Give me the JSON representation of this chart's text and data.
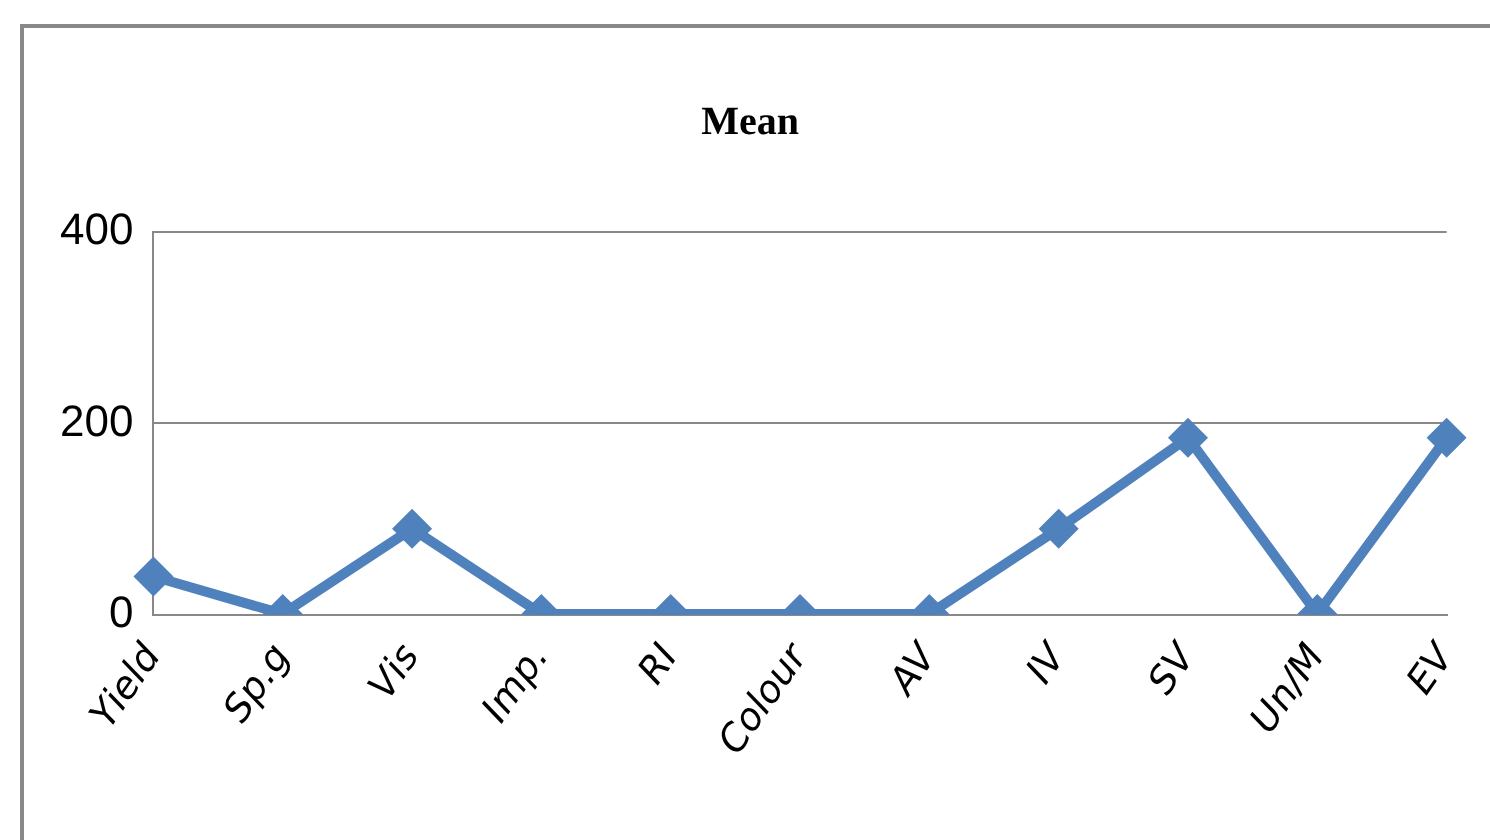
{
  "chart_data": {
    "type": "line",
    "title": "Mean",
    "categories": [
      "Yield",
      "Sp.g",
      "Vis",
      "Imp.",
      "RI",
      "Colour",
      "AV",
      "IV",
      "SV",
      "Un/M",
      "EV"
    ],
    "series": [
      {
        "color": "#4f81bd",
        "values": [
          40,
          1,
          90,
          1,
          1,
          1,
          1,
          90,
          185,
          1,
          185
        ]
      }
    ],
    "ylim": [
      0,
      400
    ],
    "yticks": [
      0,
      200,
      400
    ],
    "grid": "y",
    "legend": false,
    "marker": "diamond",
    "line_style": "solid"
  }
}
